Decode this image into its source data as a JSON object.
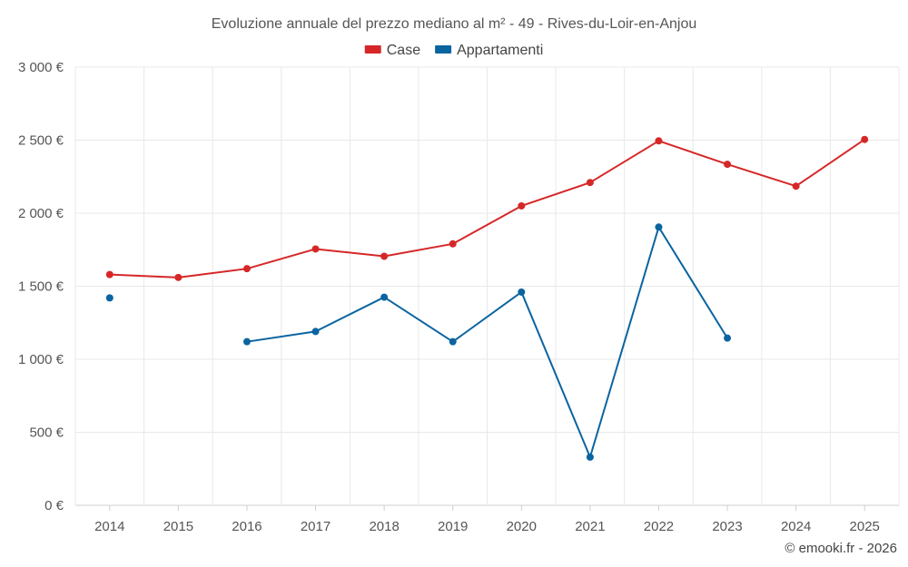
{
  "chart_data": {
    "type": "line",
    "title": "Evoluzione annuale del prezzo mediano al m² - 49 - Rives-du-Loir-en-Anjou",
    "categories": [
      "2014",
      "2015",
      "2016",
      "2017",
      "2018",
      "2019",
      "2020",
      "2021",
      "2022",
      "2023",
      "2024",
      "2025"
    ],
    "series": [
      {
        "name": "Case",
        "color": "#d62728",
        "values": [
          1580,
          1560,
          1620,
          1755,
          1705,
          1790,
          2050,
          2210,
          2495,
          2335,
          2185,
          2505
        ]
      },
      {
        "name": "Appartamenti",
        "color": "#0a64a0",
        "values": [
          1420,
          null,
          1120,
          1190,
          1425,
          1120,
          1460,
          330,
          1905,
          1145,
          null,
          null
        ]
      }
    ],
    "ylim": [
      0,
      3000
    ],
    "yticks": [
      0,
      500,
      1000,
      1500,
      2000,
      2500,
      3000
    ],
    "ytick_labels": [
      "0 €",
      "500 €",
      "1 000 €",
      "1 500 €",
      "2 000 €",
      "2 500 €",
      "3 000 €"
    ],
    "xlabel": "",
    "ylabel": "",
    "legend_position": "top-center",
    "grid": true
  },
  "credit": "© emooki.fr - 2026"
}
